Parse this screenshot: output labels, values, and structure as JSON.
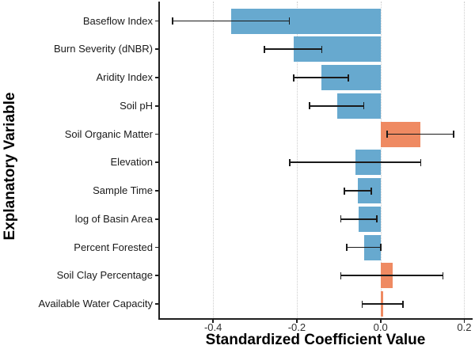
{
  "chart_data": {
    "type": "bar",
    "orientation": "horizontal",
    "title": "",
    "xlabel": "Standardized Coefficient Value",
    "ylabel": "Explanatory Variable",
    "xlim": [
      -0.527,
      0.22
    ],
    "xticks": [
      -0.4,
      -0.2,
      0.0,
      0.2
    ],
    "xtick_labels": [
      "-0.4",
      "-0.2",
      "0.0",
      "0.2"
    ],
    "grid": "dotted-vertical",
    "legend": "none",
    "error_bars": "horizontal, capped, 95% CI",
    "colors": {
      "negative_bar": "#67a9cf",
      "positive_bar": "#ef8a62",
      "error_bar": "#1a1a1a",
      "gridline": "#cdcdcd",
      "axis_line": "#1f1f1f",
      "tick_label": "#303030",
      "background": "#ffffff"
    },
    "categories": [
      "Baseflow Index",
      "Burn Severity (dNBR)",
      "Aridity Index",
      "Soil pH",
      "Soil Organic Matter",
      "Elevation",
      "Sample Time",
      "log of Basin Area",
      "Percent Forested",
      "Soil Clay Percentage",
      "Available Water Capacity"
    ],
    "series": [
      {
        "name": "standardized_coefficient",
        "values": [
          -0.356,
          -0.208,
          -0.142,
          -0.104,
          0.096,
          -0.059,
          -0.054,
          -0.053,
          -0.04,
          0.029,
          0.007
        ],
        "ci_low": [
          -0.497,
          -0.277,
          -0.207,
          -0.169,
          0.016,
          -0.217,
          -0.087,
          -0.095,
          -0.081,
          -0.095,
          -0.044
        ],
        "ci_high": [
          -0.218,
          -0.14,
          -0.077,
          -0.04,
          0.175,
          0.096,
          -0.022,
          -0.009,
          0.001,
          0.149,
          0.053
        ]
      }
    ]
  }
}
